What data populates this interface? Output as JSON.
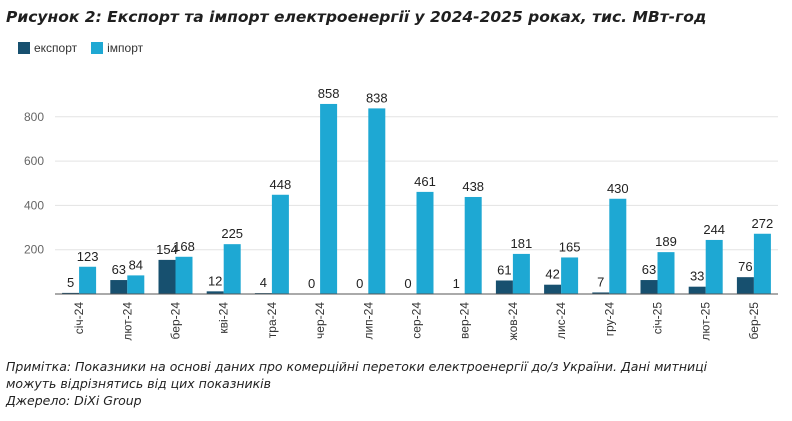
{
  "title": "Рисунок 2: Експорт та імпорт електроенергії у 2024-2025 роках, тис. МВт-год",
  "legend": {
    "export_label": "експорт",
    "import_label": "імпорт"
  },
  "colors": {
    "export": "#17506f",
    "import": "#1ea8d3",
    "grid": "#e3e3e3",
    "axis": "#555555"
  },
  "chart_data": {
    "type": "bar",
    "title": "Експорт та імпорт електроенергії у 2024-2025 роках, тис. МВт-год",
    "xlabel": "",
    "ylabel": "",
    "ylim": [
      0,
      900
    ],
    "yticks": [
      200,
      400,
      600,
      800
    ],
    "grid": true,
    "legend_position": "top-left",
    "categories": [
      "січ-24",
      "лют-24",
      "бер-24",
      "кві-24",
      "тра-24",
      "чер-24",
      "лип-24",
      "сер-24",
      "вер-24",
      "жов-24",
      "лис-24",
      "гру-24",
      "січ-25",
      "лют-25",
      "бер-25"
    ],
    "series": [
      {
        "name": "експорт",
        "values": [
          5,
          63,
          154,
          12,
          4,
          0,
          0,
          0,
          1,
          61,
          42,
          7,
          63,
          33,
          76
        ]
      },
      {
        "name": "імпорт",
        "values": [
          123,
          84,
          168,
          225,
          448,
          858,
          838,
          461,
          438,
          181,
          165,
          430,
          189,
          244,
          272
        ]
      }
    ]
  },
  "notes": {
    "line1": "Примітка: Показники на основі даних про комерційні перетоки електроенергії до/з України. Дані митниці",
    "line2": "можуть відрізнятись від цих показників",
    "source": "Джерело: DiXi Group"
  }
}
